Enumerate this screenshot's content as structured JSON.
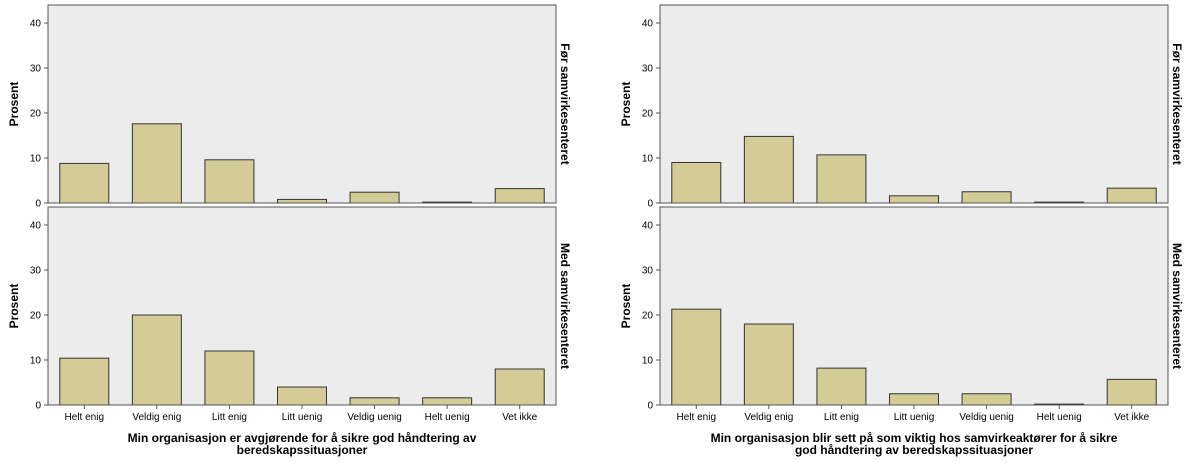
{
  "chart_data": [
    {
      "type": "bar",
      "ylabel": "Prosent",
      "xlabel_lines": [
        "Min organisasjon er avgjørende for å sikre god håndtering av",
        "beredskapssituasjoner"
      ],
      "categories": [
        "Helt enig",
        "Veldig enig",
        "Litt enig",
        "Litt uenig",
        "Veldig uenig",
        "Helt uenig",
        "Vet ikke"
      ],
      "ylim": [
        0,
        44
      ],
      "yticks": [
        0,
        10,
        20,
        30,
        40
      ],
      "panels": [
        {
          "label": "Før samvirkesenteret",
          "values": [
            8.8,
            17.6,
            9.6,
            0.8,
            2.4,
            0.2,
            3.2
          ]
        },
        {
          "label": "Med samvirkesenteret",
          "values": [
            10.4,
            20.0,
            12.0,
            4.0,
            1.6,
            1.6,
            8.0
          ]
        }
      ]
    },
    {
      "type": "bar",
      "ylabel": "Prosent",
      "xlabel_lines": [
        "Min organisasjon blir sett på som viktig hos samvirkeaktører for å sikre",
        "god håndtering av beredskapssituasjoner"
      ],
      "categories": [
        "Helt enig",
        "Veldig enig",
        "Litt enig",
        "Litt uenig",
        "Veldig uenig",
        "Helt uenig",
        "Vet ikke"
      ],
      "ylim": [
        0,
        44
      ],
      "yticks": [
        0,
        10,
        20,
        30,
        40
      ],
      "panels": [
        {
          "label": "Før samvirkesenteret",
          "values": [
            9.0,
            14.8,
            10.7,
            1.6,
            2.5,
            0.2,
            3.3
          ]
        },
        {
          "label": "Med samvirkesenteret",
          "values": [
            21.3,
            18.0,
            8.2,
            2.5,
            2.5,
            0.2,
            5.7
          ]
        }
      ]
    }
  ],
  "colors": {
    "panel_background": "#ececec",
    "bar_fill": "#d4cc97",
    "bar_stroke": "#333333",
    "frame": "#555555",
    "text": "#000000"
  }
}
